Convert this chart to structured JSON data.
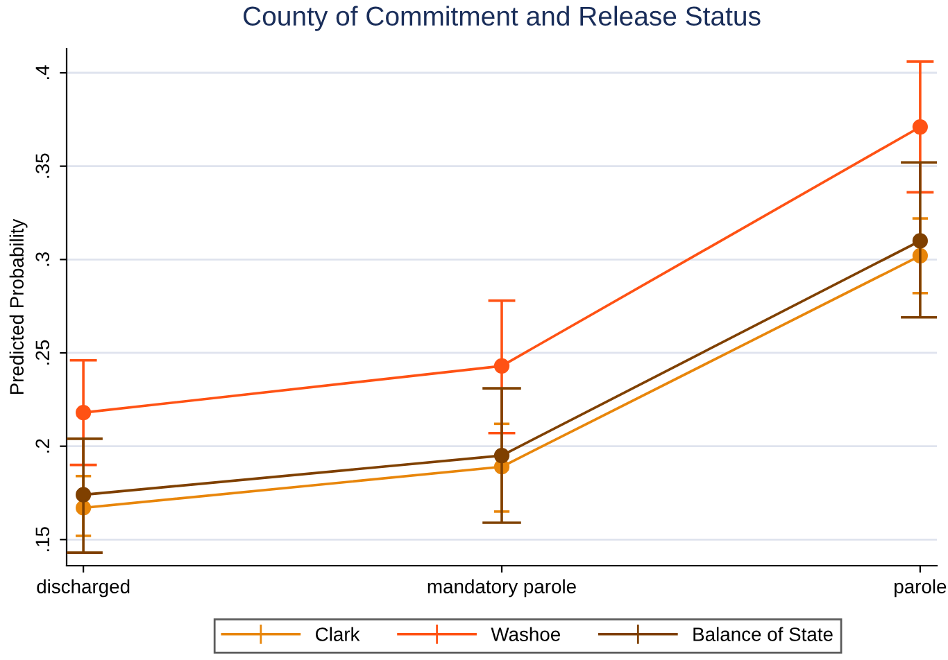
{
  "chart_data": {
    "type": "line",
    "title": "County of Commitment and Release Status",
    "ylabel": "Predicted Probability",
    "categories": [
      "discharged",
      "mandatory parole",
      "parole"
    ],
    "series": [
      {
        "name": "Clark",
        "color": "#e8860b",
        "values": [
          0.167,
          0.189,
          0.302
        ],
        "errors": [
          [
            0.152,
            0.184
          ],
          [
            0.165,
            0.212
          ],
          [
            0.282,
            0.322
          ]
        ]
      },
      {
        "name": "Washoe",
        "color": "#ff5214",
        "values": [
          0.218,
          0.243,
          0.371
        ],
        "errors": [
          [
            0.19,
            0.246
          ],
          [
            0.207,
            0.278
          ],
          [
            0.336,
            0.406
          ]
        ]
      },
      {
        "name": "Balance of State",
        "color": "#7f4000",
        "values": [
          0.174,
          0.195,
          0.31
        ],
        "errors": [
          [
            0.143,
            0.204
          ],
          [
            0.159,
            0.231
          ],
          [
            0.269,
            0.352
          ]
        ]
      }
    ],
    "ylim": [
      0.136,
      0.413
    ],
    "yticks": [
      {
        "value": 0.15,
        "label": ".15"
      },
      {
        "value": 0.2,
        "label": ".2"
      },
      {
        "value": 0.25,
        "label": ".25"
      },
      {
        "value": 0.3,
        "label": ".3"
      },
      {
        "value": 0.35,
        "label": ".35"
      },
      {
        "value": 0.4,
        "label": ".4"
      }
    ],
    "grid": "y",
    "legend": "bottom",
    "marker": "circle",
    "line_style": "solid"
  }
}
